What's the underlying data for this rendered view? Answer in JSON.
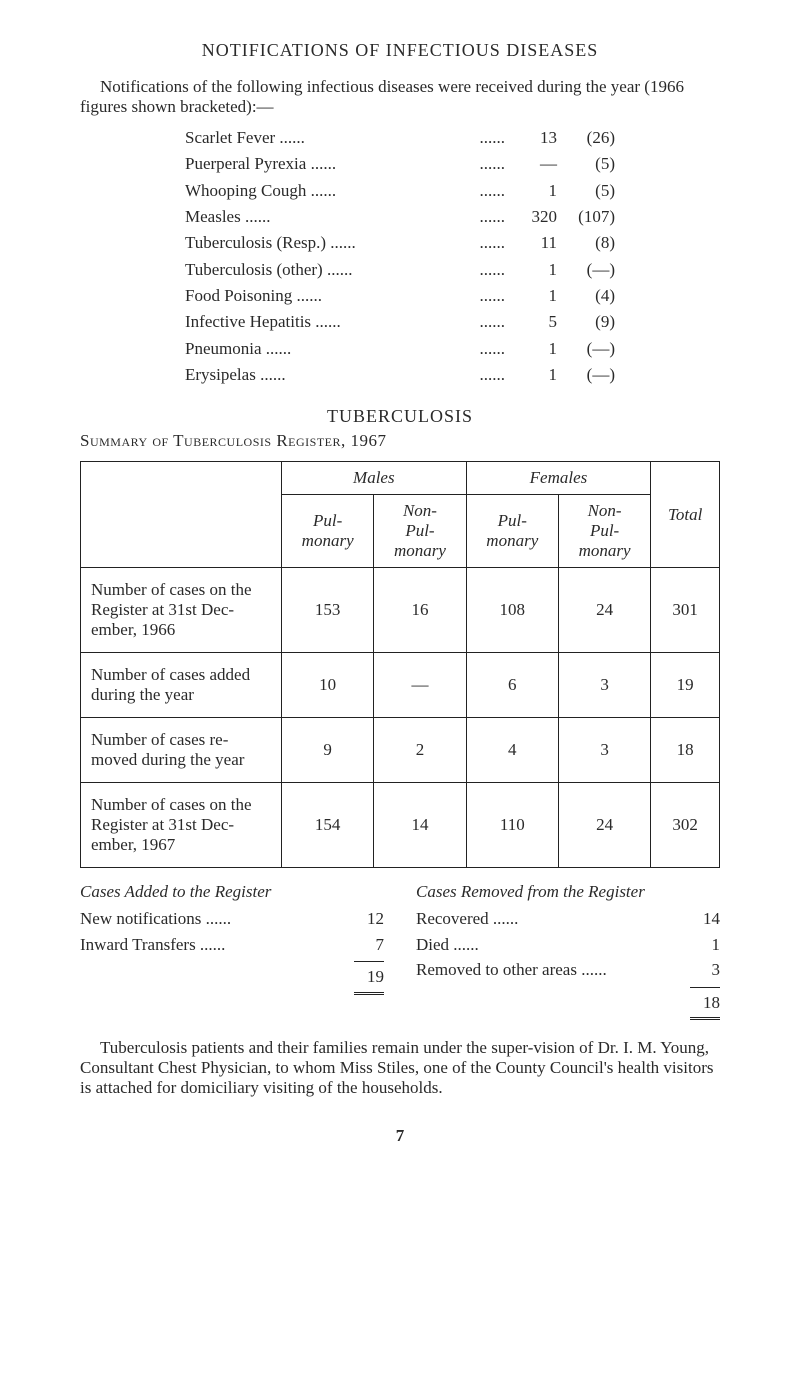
{
  "title_main": "NOTIFICATIONS OF INFECTIOUS DISEASES",
  "intro_text": "Notifications of the following infectious diseases were received during the year (1966 figures shown bracketed):—",
  "notifications": [
    {
      "label": "Scarlet Fever",
      "value": "13",
      "bracket": "(26)"
    },
    {
      "label": "Puerperal Pyrexia",
      "value": "—",
      "bracket": "(5)"
    },
    {
      "label": "Whooping Cough",
      "value": "1",
      "bracket": "(5)"
    },
    {
      "label": "Measles",
      "value": "320",
      "bracket": "(107)"
    },
    {
      "label": "Tuberculosis (Resp.)",
      "value": "11",
      "bracket": "(8)"
    },
    {
      "label": "Tuberculosis (other)",
      "value": "1",
      "bracket": "(—)"
    },
    {
      "label": "Food Poisoning",
      "value": "1",
      "bracket": "(4)"
    },
    {
      "label": "Infective Hepatitis",
      "value": "5",
      "bracket": "(9)"
    },
    {
      "label": "Pneumonia",
      "value": "1",
      "bracket": "(—)"
    },
    {
      "label": "Erysipelas",
      "value": "1",
      "bracket": "(—)"
    }
  ],
  "title_tb": "TUBERCULOSIS",
  "subhead_tb": "Summary of Tuberculosis Register, 1967",
  "tb_headers": {
    "males": "Males",
    "females": "Females",
    "pul": "Pul-\nmonary",
    "nonpul": "Non-\nPul-\nmonary",
    "total": "Total"
  },
  "tb_rows": [
    {
      "label": "Number of cases on the Register at 31st Dec-ember, 1966",
      "m_pul": "153",
      "m_non": "16",
      "f_pul": "108",
      "f_non": "24",
      "total": "301"
    },
    {
      "label": "Number of cases added during the year",
      "m_pul": "10",
      "m_non": "—",
      "f_pul": "6",
      "f_non": "3",
      "total": "19"
    },
    {
      "label": "Number of cases re-moved during the year",
      "m_pul": "9",
      "m_non": "2",
      "f_pul": "4",
      "f_non": "3",
      "total": "18"
    },
    {
      "label": "Number of cases on the Register at 31st Dec-ember, 1967",
      "m_pul": "154",
      "m_non": "14",
      "f_pul": "110",
      "f_non": "24",
      "total": "302"
    }
  ],
  "cases_added_title": "Cases Added to the Register",
  "cases_removed_title": "Cases Removed from the Register",
  "cases_added": [
    {
      "label": "New notifications",
      "value": "12"
    },
    {
      "label": "Inward Transfers",
      "value": "7"
    }
  ],
  "cases_added_total": "19",
  "cases_removed": [
    {
      "label": "Recovered",
      "value": "14"
    },
    {
      "label": "Died",
      "value": "1"
    },
    {
      "label": "Removed   to   other   areas",
      "value": "3"
    }
  ],
  "cases_removed_total": "18",
  "closing_text": "Tuberculosis patients and their families remain under the super-vision of Dr. I. M. Young, Consultant Chest Physician, to whom Miss Stiles, one of the County Council's health visitors is attached for domiciliary visiting of the households.",
  "page_number": "7"
}
